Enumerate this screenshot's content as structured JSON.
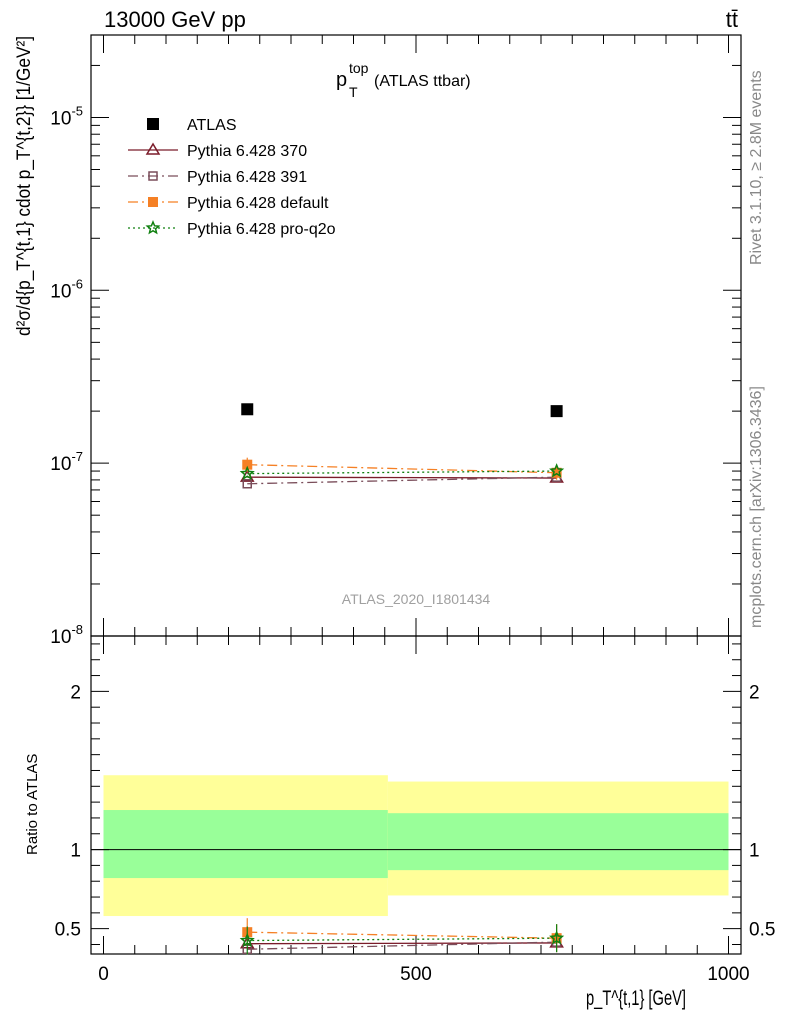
{
  "header": {
    "left": "13000 GeV pp",
    "right": "tt̄"
  },
  "side_labels": {
    "rivet": "Rivet 3.1.10, ≥ 2.8M events",
    "mcplots": "mcplots.cern.ch [arXiv:1306.3436]"
  },
  "watermark": "ATLAS_2020_I1801434",
  "plot_title": {
    "main": "p",
    "sup": "top",
    "sub": "T",
    "suffix": " (ATLAS ttbar)"
  },
  "main_ylabel": "d²σ/d{p_T^{t,1} cdot p_T^{t,2}} [1/GeV²]",
  "ratio_ylabel": "Ratio to ATLAS",
  "xlabel": "p_T^{t,1} [GeV]",
  "legend": [
    {
      "key": "atlas",
      "label": "ATLAS",
      "color": "#000000",
      "marker": "square-filled"
    },
    {
      "key": "p370",
      "label": "Pythia 6.428 370",
      "color": "#7b1c2a",
      "marker": "triangle-open"
    },
    {
      "key": "p391",
      "label": "Pythia 6.428 391",
      "color": "#7a4d5a",
      "marker": "square-open"
    },
    {
      "key": "pdef",
      "label": "Pythia 6.428 default",
      "color": "#f58025",
      "marker": "square-filled"
    },
    {
      "key": "pq2o",
      "label": "Pythia 6.428 pro-q2o",
      "color": "#108010",
      "marker": "star-open"
    }
  ],
  "chart_data": [
    {
      "type": "scatter",
      "panel": "main",
      "yscale": "log",
      "xlim": [
        -20,
        1020
      ],
      "ylim": [
        1e-08,
        3e-05
      ],
      "y_tick_labels": [
        "10^{-8}",
        "10^{-7}",
        "10^{-6}",
        "10^{-5}"
      ],
      "x": [
        230,
        725
      ],
      "series": [
        {
          "name": "ATLAS",
          "values": [
            2.05e-07,
            2e-07
          ]
        },
        {
          "name": "Pythia 6.428 370",
          "values": [
            8.3e-08,
            8.2e-08
          ]
        },
        {
          "name": "Pythia 6.428 391",
          "values": [
            7.6e-08,
            8.3e-08
          ]
        },
        {
          "name": "Pythia 6.428 default",
          "values": [
            9.8e-08,
            8.8e-08
          ]
        },
        {
          "name": "Pythia 6.428 pro-q2o",
          "values": [
            8.7e-08,
            9e-08
          ]
        }
      ]
    },
    {
      "type": "line",
      "panel": "ratio",
      "xlim": [
        -20,
        1020
      ],
      "ylim": [
        0.34,
        2.35
      ],
      "x_tick_labels": [
        "0",
        "500",
        "1000"
      ],
      "y_tick_labels": [
        "0.5",
        "1",
        "2"
      ],
      "x": [
        230,
        725
      ],
      "bands": [
        {
          "x_from": 0,
          "x_to": 455,
          "yellow": [
            0.58,
            1.47
          ],
          "green": [
            0.82,
            1.25
          ]
        },
        {
          "x_from": 455,
          "x_to": 1000,
          "yellow": [
            0.71,
            1.43
          ],
          "green": [
            0.87,
            1.23
          ]
        }
      ],
      "series": [
        {
          "name": "Pythia 6.428 370",
          "values": [
            0.405,
            0.41
          ]
        },
        {
          "name": "Pythia 6.428 391",
          "values": [
            0.37,
            0.415
          ]
        },
        {
          "name": "Pythia 6.428 default",
          "values": [
            0.478,
            0.44
          ]
        },
        {
          "name": "Pythia 6.428 pro-q2o",
          "values": [
            0.425,
            0.44
          ]
        }
      ]
    }
  ]
}
